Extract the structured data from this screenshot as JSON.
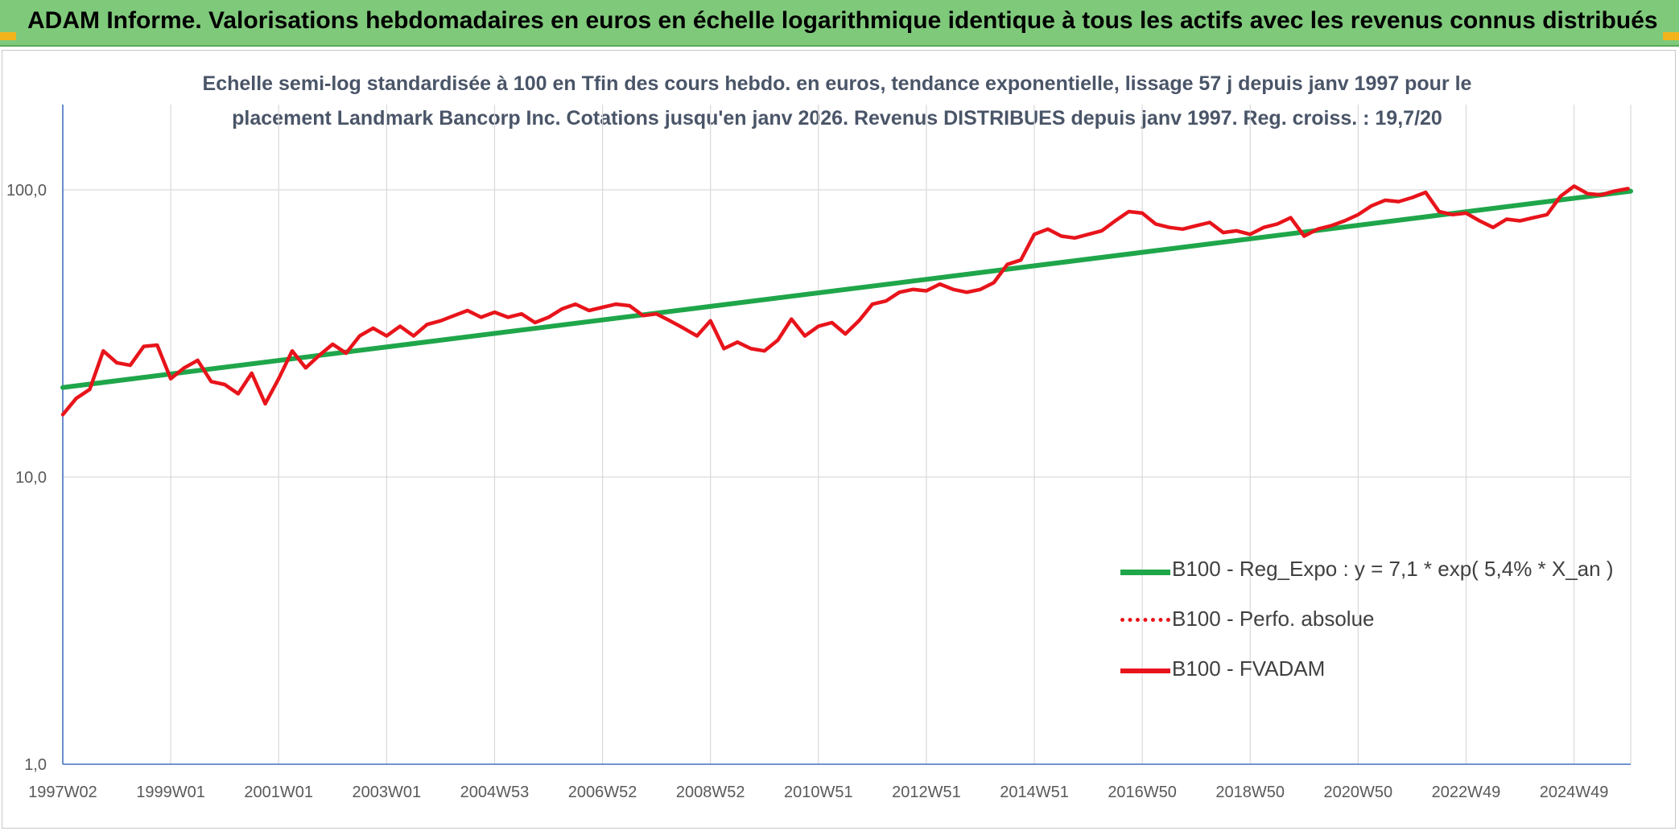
{
  "header": {
    "title": "ADAM Informe. Valorisations hebdomadaires en euros en échelle logarithmique identique à tous les actifs avec les revenus connus distribués"
  },
  "colors": {
    "header_bg": "#7fc97b",
    "regression": "#1fa64a",
    "fvadam": "#e8141b",
    "perfo": "#e8141b",
    "axis": "#4472c4",
    "grid": "#d9d9d9"
  },
  "chart_data": {
    "type": "line",
    "title_line1": "Echelle semi-log standardisée à 100 en Tfin des cours hebdo. en euros, tendance exponentielle, lissage 57 j depuis janv 1997 pour le",
    "title_line2": "placement Landmark Bancorp Inc. Cotations jusqu'en janv 2026. Revenus DISTRIBUES depuis janv 1997. Reg. croiss. : 19,7/20",
    "y_scale": "log",
    "ylim": [
      1,
      100
    ],
    "y_ticks": [
      {
        "value": 1,
        "label": "1,0"
      },
      {
        "value": 10,
        "label": "10,0"
      },
      {
        "value": 100,
        "label": "100,0"
      }
    ],
    "xlim": [
      1997.0,
      2026.05
    ],
    "x_ticks": [
      {
        "value": 1997.0,
        "label": "1997W02"
      },
      {
        "value": 1999.0,
        "label": "1999W01"
      },
      {
        "value": 2001.0,
        "label": "2001W01"
      },
      {
        "value": 2003.0,
        "label": "2003W01"
      },
      {
        "value": 2005.0,
        "label": "2004W53"
      },
      {
        "value": 2007.0,
        "label": "2006W52"
      },
      {
        "value": 2009.0,
        "label": "2008W52"
      },
      {
        "value": 2011.0,
        "label": "2010W51"
      },
      {
        "value": 2013.0,
        "label": "2012W51"
      },
      {
        "value": 2015.0,
        "label": "2014W51"
      },
      {
        "value": 2017.0,
        "label": "2016W50"
      },
      {
        "value": 2019.0,
        "label": "2018W50"
      },
      {
        "value": 2021.0,
        "label": "2020W50"
      },
      {
        "value": 2023.0,
        "label": "2022W49"
      },
      {
        "value": 2025.0,
        "label": "2024W49"
      }
    ],
    "grid": true,
    "legend_position": "bottom-right",
    "series": [
      {
        "name": "B100 - Reg_Expo : y = 7,1 * exp( 5,4% *  X_an )",
        "color": "#1fa64a",
        "style": "solid",
        "x": [
          1997.0,
          2026.05
        ],
        "y": [
          20.5,
          99.0
        ]
      },
      {
        "name": "B100 - Perfo. absolue",
        "color": "#e8141b",
        "style": "dotted",
        "x": [],
        "y": []
      },
      {
        "name": "B100 - FVADAM",
        "color": "#e8141b",
        "style": "solid",
        "x": [
          1997.0,
          1997.25,
          1997.5,
          1997.75,
          1998.0,
          1998.25,
          1998.5,
          1998.75,
          1999.0,
          1999.25,
          1999.5,
          1999.75,
          2000.0,
          2000.25,
          2000.5,
          2000.75,
          2001.0,
          2001.25,
          2001.5,
          2001.75,
          2002.0,
          2002.25,
          2002.5,
          2002.75,
          2003.0,
          2003.25,
          2003.5,
          2003.75,
          2004.0,
          2004.25,
          2004.5,
          2004.75,
          2005.0,
          2005.25,
          2005.5,
          2005.75,
          2006.0,
          2006.25,
          2006.5,
          2006.75,
          2007.0,
          2007.25,
          2007.5,
          2007.75,
          2008.0,
          2008.25,
          2008.5,
          2008.75,
          2009.0,
          2009.25,
          2009.5,
          2009.75,
          2010.0,
          2010.25,
          2010.5,
          2010.75,
          2011.0,
          2011.25,
          2011.5,
          2011.75,
          2012.0,
          2012.25,
          2012.5,
          2012.75,
          2013.0,
          2013.25,
          2013.5,
          2013.75,
          2014.0,
          2014.25,
          2014.5,
          2014.75,
          2015.0,
          2015.25,
          2015.5,
          2015.75,
          2016.0,
          2016.25,
          2016.5,
          2016.75,
          2017.0,
          2017.25,
          2017.5,
          2017.75,
          2018.0,
          2018.25,
          2018.5,
          2018.75,
          2019.0,
          2019.25,
          2019.5,
          2019.75,
          2020.0,
          2020.25,
          2020.5,
          2020.75,
          2021.0,
          2021.25,
          2021.5,
          2021.75,
          2022.0,
          2022.25,
          2022.5,
          2022.75,
          2023.0,
          2023.25,
          2023.5,
          2023.75,
          2024.0,
          2024.25,
          2024.5,
          2024.75,
          2025.0,
          2025.25,
          2025.5,
          2025.75,
          2026.0
        ],
        "y": [
          16.5,
          18.8,
          20.2,
          27.5,
          25.0,
          24.5,
          28.5,
          28.8,
          22.0,
          24.0,
          25.5,
          21.5,
          21.0,
          19.5,
          23.0,
          18.0,
          22.0,
          27.5,
          24.0,
          26.5,
          29.0,
          27.0,
          31.0,
          33.0,
          31.0,
          33.5,
          31.0,
          34.0,
          35.0,
          36.5,
          38.0,
          36.0,
          37.5,
          36.0,
          37.0,
          34.5,
          36.0,
          38.5,
          40.0,
          38.0,
          39.0,
          40.0,
          39.5,
          36.5,
          37.0,
          35.0,
          33.0,
          31.0,
          35.0,
          28.0,
          29.5,
          28.0,
          27.5,
          30.0,
          35.5,
          31.0,
          33.5,
          34.5,
          31.5,
          35.0,
          40.0,
          41.0,
          44.0,
          45.0,
          44.5,
          47.0,
          45.0,
          44.0,
          45.0,
          47.5,
          55.0,
          57.0,
          70.0,
          73.0,
          69.0,
          68.0,
          70.0,
          72.0,
          78.0,
          84.0,
          83.0,
          76.0,
          74.0,
          73.0,
          75.0,
          77.0,
          71.0,
          72.0,
          70.0,
          74.0,
          76.0,
          80.0,
          69.0,
          73.0,
          75.0,
          78.0,
          82.0,
          88.0,
          92.0,
          91.0,
          94.0,
          98.0,
          84.0,
          82.0,
          83.0,
          78.0,
          74.0,
          79.0,
          78.0,
          80.0,
          82.0,
          95.0,
          103.0,
          97.0,
          96.0,
          99.0,
          101.0
        ]
      }
    ]
  }
}
